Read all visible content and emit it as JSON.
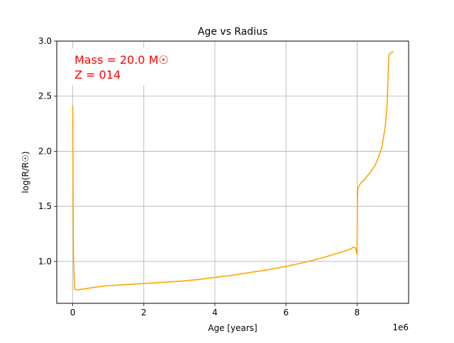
{
  "chart_data": {
    "type": "line",
    "title": "Age vs Radius",
    "xlabel": "Age [years]",
    "ylabel": "log(R/R☉)",
    "x_offset_label": "1e6",
    "xlim": [
      -0.45,
      9.45
    ],
    "ylim": [
      0.62,
      3.0
    ],
    "x_scale_factor": 1000000,
    "xticks": [
      0,
      2,
      4,
      6,
      8
    ],
    "xtick_labels": [
      "0",
      "2",
      "4",
      "6",
      "8"
    ],
    "yticks": [
      1.0,
      1.5,
      2.0,
      2.5,
      3.0
    ],
    "ytick_labels": [
      "1.0",
      "1.5",
      "2.0",
      "2.5",
      "3.0"
    ],
    "grid": true,
    "annotation": {
      "lines": [
        "Mass = 20.0 M☉",
        "Z = 014"
      ],
      "color": "#ff0000"
    },
    "series": [
      {
        "color": "#ffa500",
        "x": [
          0.0,
          0.0,
          0.0,
          0.01,
          0.02,
          0.05,
          0.1,
          0.3,
          0.6,
          1.0,
          1.5,
          2.0,
          2.5,
          3.0,
          3.5,
          4.0,
          4.5,
          5.0,
          5.5,
          6.0,
          6.5,
          7.0,
          7.5,
          7.8,
          7.9,
          7.96,
          8.0,
          8.01,
          8.02,
          8.03,
          8.06,
          8.1,
          8.2,
          8.3,
          8.4,
          8.5,
          8.6,
          8.7,
          8.8,
          8.85,
          8.88,
          8.9,
          8.92,
          8.95,
          8.98,
          9.02
        ],
        "y": [
          2.2,
          2.41,
          2.33,
          1.6,
          1.05,
          0.75,
          0.74,
          0.75,
          0.765,
          0.78,
          0.79,
          0.8,
          0.81,
          0.82,
          0.835,
          0.855,
          0.875,
          0.9,
          0.925,
          0.955,
          0.99,
          1.03,
          1.08,
          1.11,
          1.13,
          1.12,
          1.06,
          1.55,
          1.65,
          1.67,
          1.69,
          1.71,
          1.74,
          1.78,
          1.82,
          1.87,
          1.94,
          2.04,
          2.24,
          2.45,
          2.75,
          2.88,
          2.885,
          2.89,
          2.9,
          2.9
        ]
      }
    ]
  }
}
